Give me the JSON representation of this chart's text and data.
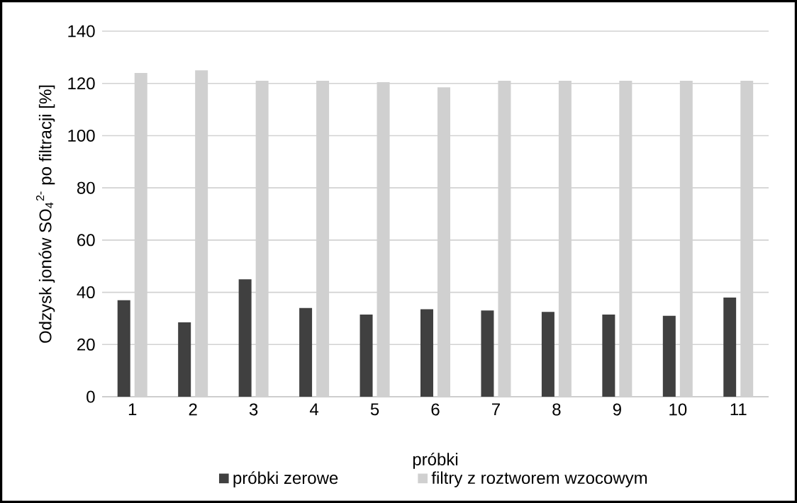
{
  "chart_data": {
    "type": "bar",
    "xlabel": "próbki",
    "ylabel": "Odzysk jonów SO$_{4}$$^{2-}$ po filtracji [%]",
    "categories": [
      "1",
      "2",
      "3",
      "4",
      "5",
      "6",
      "7",
      "8",
      "9",
      "10",
      "11"
    ],
    "series": [
      {
        "name": "próbki zerowe",
        "color": "#404040",
        "values": [
          37,
          28.5,
          45,
          34,
          31.5,
          33.5,
          33,
          32.5,
          31.5,
          31,
          38
        ]
      },
      {
        "name": "filtry z roztworem wzocowym",
        "color": "#d0d0d0",
        "values": [
          124,
          125,
          121,
          121,
          120.5,
          118.5,
          121,
          121,
          121,
          121,
          121
        ]
      }
    ],
    "ylim": [
      0,
      140
    ],
    "yticks": [
      0,
      20,
      40,
      60,
      80,
      100,
      120,
      140
    ],
    "grid": "y",
    "legend": "bottom"
  }
}
